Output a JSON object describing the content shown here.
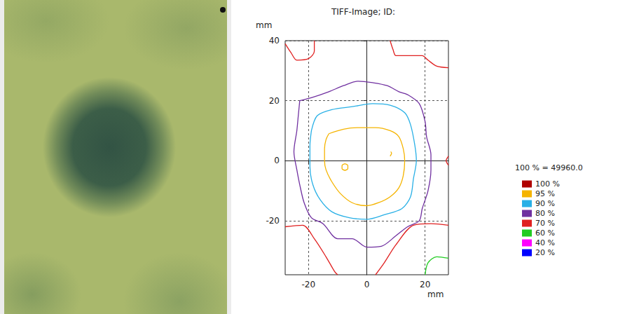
{
  "chart_data": {
    "type": "contour",
    "title": "TIFF-Image; ID:",
    "x_label": "mm",
    "y_label": "mm",
    "legend_title": "100 % = 49960.0",
    "xlim": [
      -28,
      28
    ],
    "ylim": [
      -38,
      40
    ],
    "xticks": [
      -20,
      0,
      20
    ],
    "yticks": [
      -20,
      0,
      20,
      40
    ],
    "grid": true,
    "legend": "right",
    "series": [
      {
        "name": "100 %",
        "color": "#b00000",
        "segments": []
      },
      {
        "name": "95 %",
        "color": "#f5b400",
        "segments": [
          [
            [
              -13,
              9
            ],
            [
              -8,
              10.5
            ],
            [
              -3,
              11
            ],
            [
              3,
              11
            ],
            [
              8,
              10
            ],
            [
              11,
              8
            ],
            [
              12.5,
              4
            ],
            [
              13,
              0
            ],
            [
              12.5,
              -5
            ],
            [
              11,
              -9
            ],
            [
              8,
              -12
            ],
            [
              4,
              -14
            ],
            [
              0,
              -15
            ],
            [
              -5,
              -14
            ],
            [
              -9,
              -11
            ],
            [
              -12,
              -7
            ],
            [
              -14,
              -3
            ],
            [
              -14.5,
              0
            ],
            [
              -14.5,
              4
            ],
            [
              -14,
              7
            ],
            [
              -13,
              9
            ]
          ],
          [
            [
              -7.5,
              -1
            ],
            [
              -6.5,
              -1.6
            ],
            [
              -6.5,
              -2.6
            ],
            [
              -7.5,
              -3.2
            ],
            [
              -8.5,
              -2.6
            ],
            [
              -8.5,
              -1.6
            ],
            [
              -7.5,
              -1
            ]
          ],
          [
            [
              8,
              1.5
            ],
            [
              8.5,
              2.5
            ],
            [
              8.2,
              3
            ]
          ]
        ]
      },
      {
        "name": "90 %",
        "color": "#29b0e6",
        "segments": [
          [
            [
              -19,
              10
            ],
            [
              -17,
              15
            ],
            [
              -12,
              17
            ],
            [
              -5,
              18
            ],
            [
              2,
              19
            ],
            [
              8,
              18.5
            ],
            [
              13,
              16
            ],
            [
              15,
              12
            ],
            [
              16.5,
              5
            ],
            [
              17,
              0
            ],
            [
              16,
              -6
            ],
            [
              15,
              -12
            ],
            [
              12,
              -16
            ],
            [
              6,
              -18
            ],
            [
              0,
              -19.5
            ],
            [
              -6,
              -19
            ],
            [
              -12,
              -17
            ],
            [
              -16,
              -13
            ],
            [
              -18.5,
              -8
            ],
            [
              -19.5,
              -2
            ],
            [
              -19.5,
              5
            ],
            [
              -19,
              10
            ]
          ]
        ]
      },
      {
        "name": "80 %",
        "color": "#7030a0",
        "segments": [
          [
            [
              -23,
              20
            ],
            [
              -19,
              21
            ],
            [
              -13,
              23
            ],
            [
              -8,
              25
            ],
            [
              -3,
              26.5
            ],
            [
              2,
              26
            ],
            [
              7,
              25
            ],
            [
              11,
              23
            ],
            [
              14,
              22
            ],
            [
              18,
              19
            ],
            [
              20,
              13
            ],
            [
              20.5,
              8
            ],
            [
              22,
              2
            ],
            [
              22,
              -3
            ],
            [
              21,
              -10
            ],
            [
              19,
              -16
            ],
            [
              18,
              -20
            ],
            [
              14,
              -22
            ],
            [
              10,
              -25
            ],
            [
              5,
              -28.5
            ],
            [
              0,
              -28.8
            ],
            [
              -5,
              -26
            ],
            [
              -10,
              -26
            ],
            [
              -15,
              -21
            ],
            [
              -19,
              -19
            ],
            [
              -21.5,
              -14
            ],
            [
              -23,
              -8
            ],
            [
              -24,
              -3
            ],
            [
              -25,
              3
            ],
            [
              -24,
              10
            ],
            [
              -23.5,
              15
            ],
            [
              -23,
              20
            ]
          ]
        ]
      },
      {
        "name": "70 %",
        "color": "#e02020",
        "segments": [
          [
            [
              -28,
              39
            ],
            [
              -26,
              36
            ],
            [
              -24,
              33.5
            ],
            [
              -20,
              34
            ],
            [
              -18,
              36.5
            ],
            [
              -18,
              40
            ]
          ],
          [
            [
              8,
              40
            ],
            [
              9,
              37
            ],
            [
              10,
              35
            ],
            [
              15,
              35
            ],
            [
              19,
              35
            ],
            [
              21,
              33.5
            ],
            [
              24,
              31.5
            ],
            [
              28,
              31
            ]
          ],
          [
            [
              28,
              1.5
            ],
            [
              27.2,
              0
            ],
            [
              28,
              -1.5
            ]
          ],
          [
            [
              -28,
              -22
            ],
            [
              -22,
              -21.5
            ],
            [
              -18,
              -26
            ],
            [
              -14,
              -32
            ],
            [
              -11,
              -37
            ],
            [
              -10,
              -38
            ]
          ],
          [
            [
              3,
              -38
            ],
            [
              6,
              -34
            ],
            [
              10,
              -28
            ],
            [
              16,
              -21.5
            ],
            [
              22,
              -21
            ],
            [
              28,
              -21.5
            ]
          ]
        ]
      },
      {
        "name": "60 %",
        "color": "#22cc22",
        "segments": [
          [
            [
              20,
              -38
            ],
            [
              21,
              -34
            ],
            [
              24,
              -32
            ],
            [
              28,
              -32.5
            ]
          ]
        ]
      },
      {
        "name": "40 %",
        "color": "#ff00ff",
        "segments": []
      },
      {
        "name": "20 %",
        "color": "#0000ff",
        "segments": []
      }
    ]
  }
}
